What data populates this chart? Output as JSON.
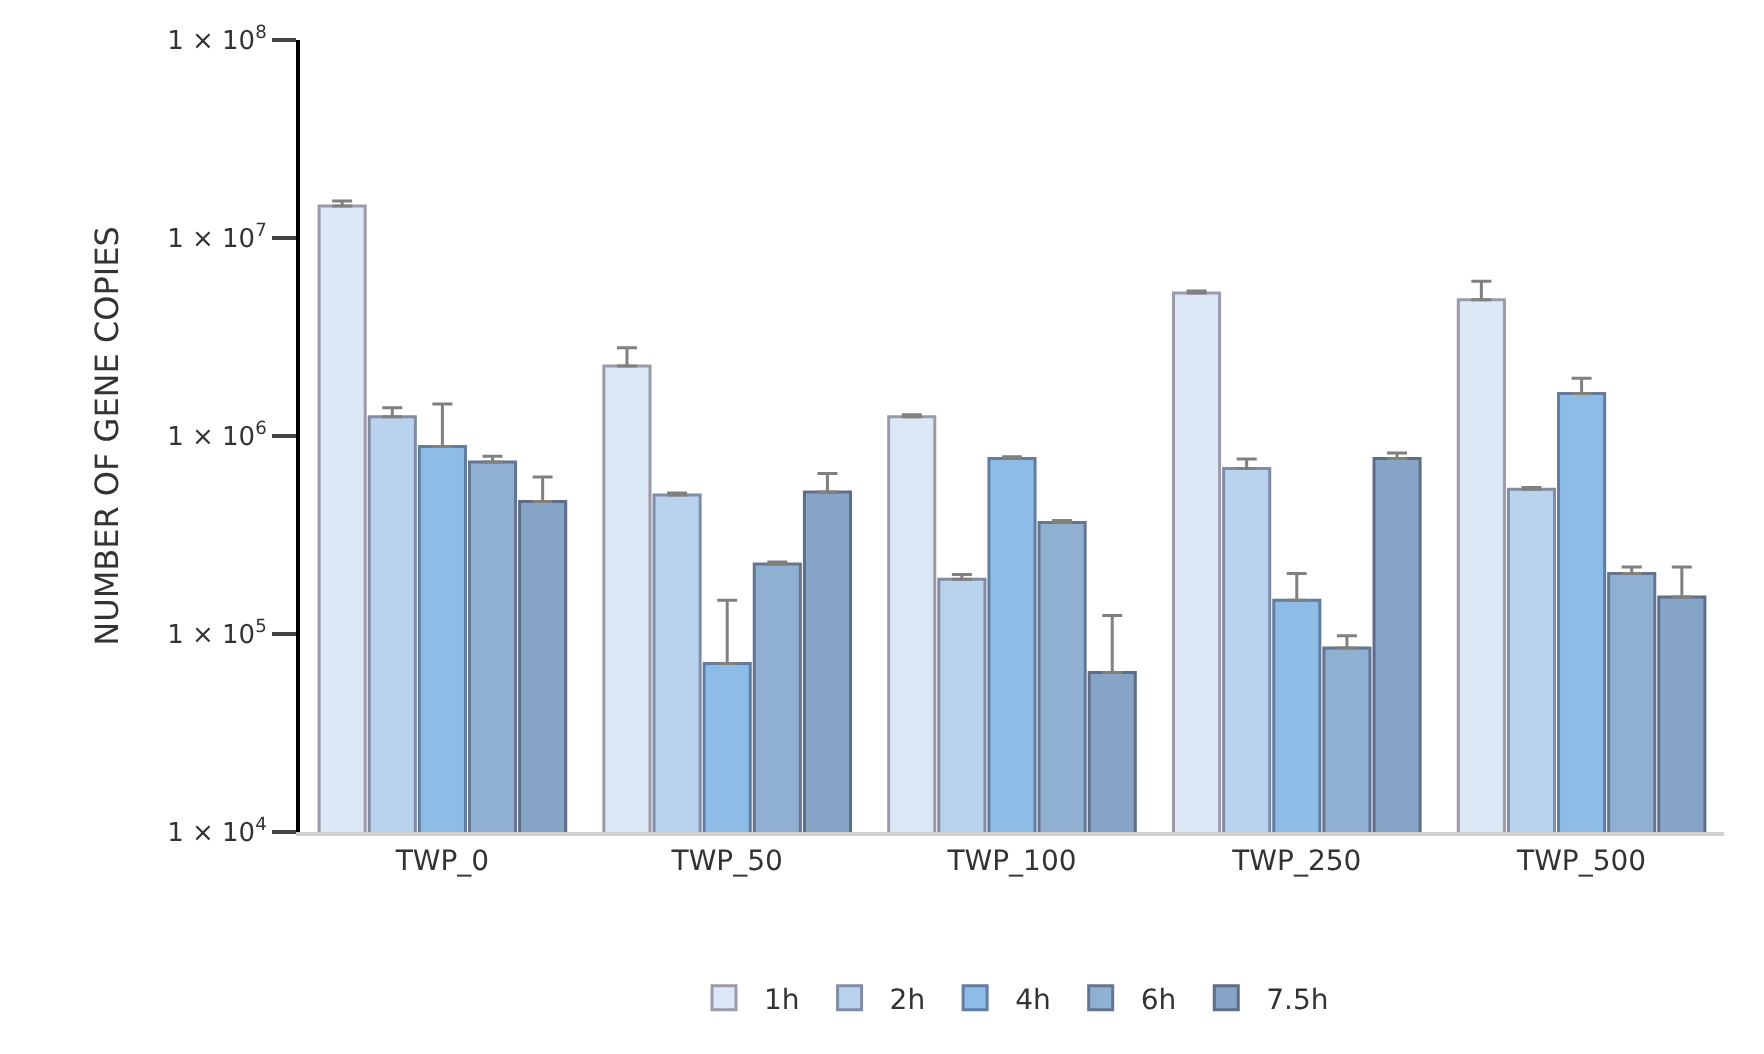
{
  "chart_data": {
    "type": "bar",
    "ylabel": "NUMBER OF GENE COPIES",
    "categories": [
      "TWP_0",
      "TWP_50",
      "TWP_100",
      "TWP_250",
      "TWP_500"
    ],
    "log": true,
    "ylim": [
      10000,
      100000000
    ],
    "yticks": [
      {
        "value": 10000,
        "label": "1 × 10$^{4}$"
      },
      {
        "value": 100000,
        "label": "1 × 10$^{5}$"
      },
      {
        "value": 1000000,
        "label": "1 × 10$^{6}$"
      },
      {
        "value": 10000000,
        "label": "1 × 10$^{7}$"
      },
      {
        "value": 100000000,
        "label": "1 × 10$^{8}$"
      }
    ],
    "legend": "bottom",
    "series": [
      {
        "name": "1h",
        "color": "#dce8f5",
        "values": [
          14500000,
          2260000,
          1250000,
          5280000,
          4880000
        ],
        "errors": [
          [
            14500000,
            15400000
          ],
          [
            2260000,
            2790000
          ],
          [
            1250000,
            1280000
          ],
          [
            5280000,
            5400000
          ],
          [
            4880000,
            6040000
          ]
        ]
      },
      {
        "name": "2h",
        "color": "#b9d3ee",
        "values": [
          1250000,
          504000,
          189000,
          686000,
          538000
        ],
        "errors": [
          [
            1250000,
            1390000
          ],
          [
            504000,
            515000
          ],
          [
            189000,
            200000
          ],
          [
            686000,
            766000
          ],
          [
            538000,
            550000
          ]
        ]
      },
      {
        "name": "4h",
        "color": "#8dbde6",
        "values": [
          885000,
          71000,
          770000,
          148000,
          1640000
        ],
        "errors": [
          [
            885000,
            1450000
          ],
          [
            71000,
            148000
          ],
          [
            770000,
            785000
          ],
          [
            148000,
            202000
          ],
          [
            1640000,
            1960000
          ]
        ]
      },
      {
        "name": "6h",
        "color": "#8fb0d0",
        "values": [
          740000,
          226000,
          366000,
          85000,
          202000
        ],
        "errors": [
          [
            740000,
            790000
          ],
          [
            226000,
            231000
          ],
          [
            366000,
            374000
          ],
          [
            85000,
            98000
          ],
          [
            202000,
            218000
          ]
        ]
      },
      {
        "name": "7.5h",
        "color": "#86a5c6",
        "values": [
          467000,
          522000,
          64000,
          770000,
          154000
        ],
        "errors": [
          [
            467000,
            620000
          ],
          [
            522000,
            646000
          ],
          [
            64000,
            124000
          ],
          [
            770000,
            820000
          ],
          [
            154000,
            218000
          ]
        ]
      }
    ]
  }
}
